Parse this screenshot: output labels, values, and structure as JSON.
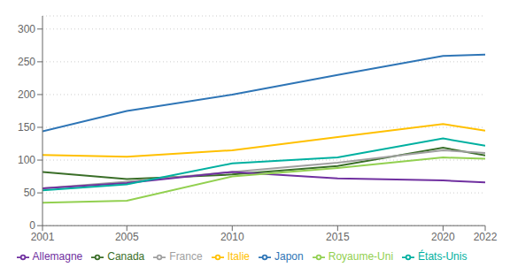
{
  "chart_data": {
    "type": "line",
    "x": [
      2001,
      2005,
      2010,
      2015,
      2020,
      2022
    ],
    "series": [
      {
        "name": "Canada",
        "color": "#3a6e28",
        "values": [
          82,
          71,
          78,
          91,
          119,
          107
        ]
      },
      {
        "name": "France",
        "color": "#a0a0a0",
        "values": [
          57,
          67,
          82,
          96,
          115,
          111
        ]
      },
      {
        "name": "Allemagne",
        "color": "#7030a0",
        "values": [
          57,
          65,
          82,
          72,
          69,
          66
        ]
      },
      {
        "name": "Italie",
        "color": "#ffc000",
        "values": [
          108,
          105,
          115,
          135,
          155,
          145
        ]
      },
      {
        "name": "Japon",
        "color": "#2e75b6",
        "values": [
          144,
          175,
          200,
          230,
          259,
          261
        ]
      },
      {
        "name": "Royaume-Uni",
        "color": "#92d050",
        "values": [
          35,
          38,
          75,
          88,
          104,
          102
        ]
      },
      {
        "name": "États-Unis",
        "color": "#00b0a0",
        "values": [
          54,
          63,
          95,
          104,
          133,
          122
        ]
      }
    ],
    "xlim": [
      2001,
      2022
    ],
    "xticks": [
      2001,
      2005,
      2010,
      2015,
      2020,
      2022
    ],
    "ylim": [
      0,
      320
    ],
    "yticks": [
      0,
      50,
      100,
      150,
      200,
      250,
      300
    ],
    "grid": true,
    "legend": "bottom"
  }
}
